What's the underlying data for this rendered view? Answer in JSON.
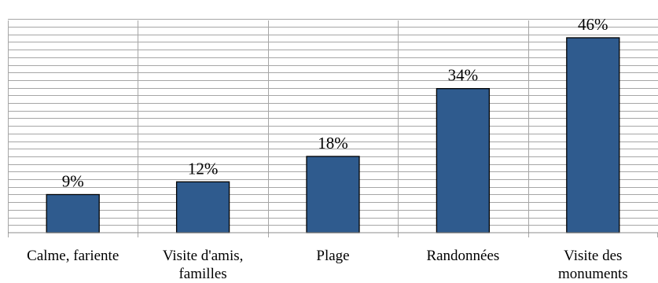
{
  "chart_data": {
    "type": "bar",
    "categories": [
      [
        "Calme, fariente"
      ],
      [
        "Visite d'amis,",
        "familles"
      ],
      [
        "Plage"
      ],
      [
        "Randonnées"
      ],
      [
        "Visite des",
        "monuments"
      ]
    ],
    "values": [
      9,
      12,
      18,
      34,
      46
    ],
    "data_labels": [
      "9%",
      "12%",
      "18%",
      "34%",
      "46%"
    ],
    "unit": "%",
    "ylim": [
      0,
      50
    ],
    "grid_step": 1.8,
    "grid": true,
    "legend": "none",
    "colors": {
      "bar": "#2f5b8e",
      "bar_border": "#000000",
      "grid": "#a6a6a6"
    }
  }
}
